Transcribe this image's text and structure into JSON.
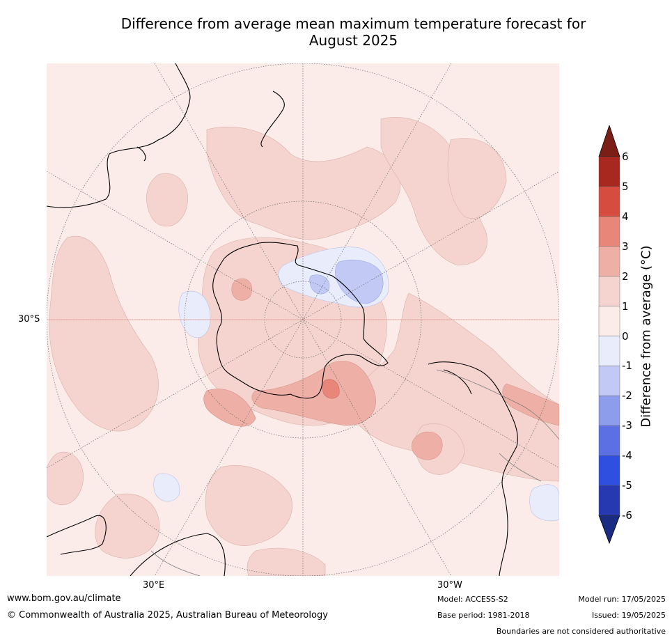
{
  "title_line1": "Difference from average mean maximum temperature forecast for",
  "title_line2": "August 2025",
  "map": {
    "lat_label": "30°S",
    "lon_labels": [
      "30°E",
      "30°W"
    ]
  },
  "colorbar": {
    "label": "Difference from average (°C)",
    "ticks": [
      "6",
      "5",
      "4",
      "3",
      "2",
      "1",
      "0",
      "-1",
      "-2",
      "-3",
      "-4",
      "-5",
      "-6"
    ],
    "colors": [
      "#7b1f16",
      "#a8271f",
      "#d64c3f",
      "#e8867a",
      "#eeb0a6",
      "#f5d4cf",
      "#fbebe9",
      "#e8ecfb",
      "#c2c9f4",
      "#8e9cec",
      "#5c70e3",
      "#2f4fe0",
      "#2639b0",
      "#1a2b82"
    ]
  },
  "footer": {
    "website": "www.bom.gov.au/climate",
    "copyright": "© Commonwealth of Australia 2025, Australian Bureau of Meteorology",
    "model": "Model: ACCESS-S2",
    "base_period": "Base period: 1981-2018",
    "model_run": "Model run: 17/05/2025",
    "issued": "Issued: 19/05/2025",
    "disclaimer": "Boundaries are not considered authoritative"
  }
}
